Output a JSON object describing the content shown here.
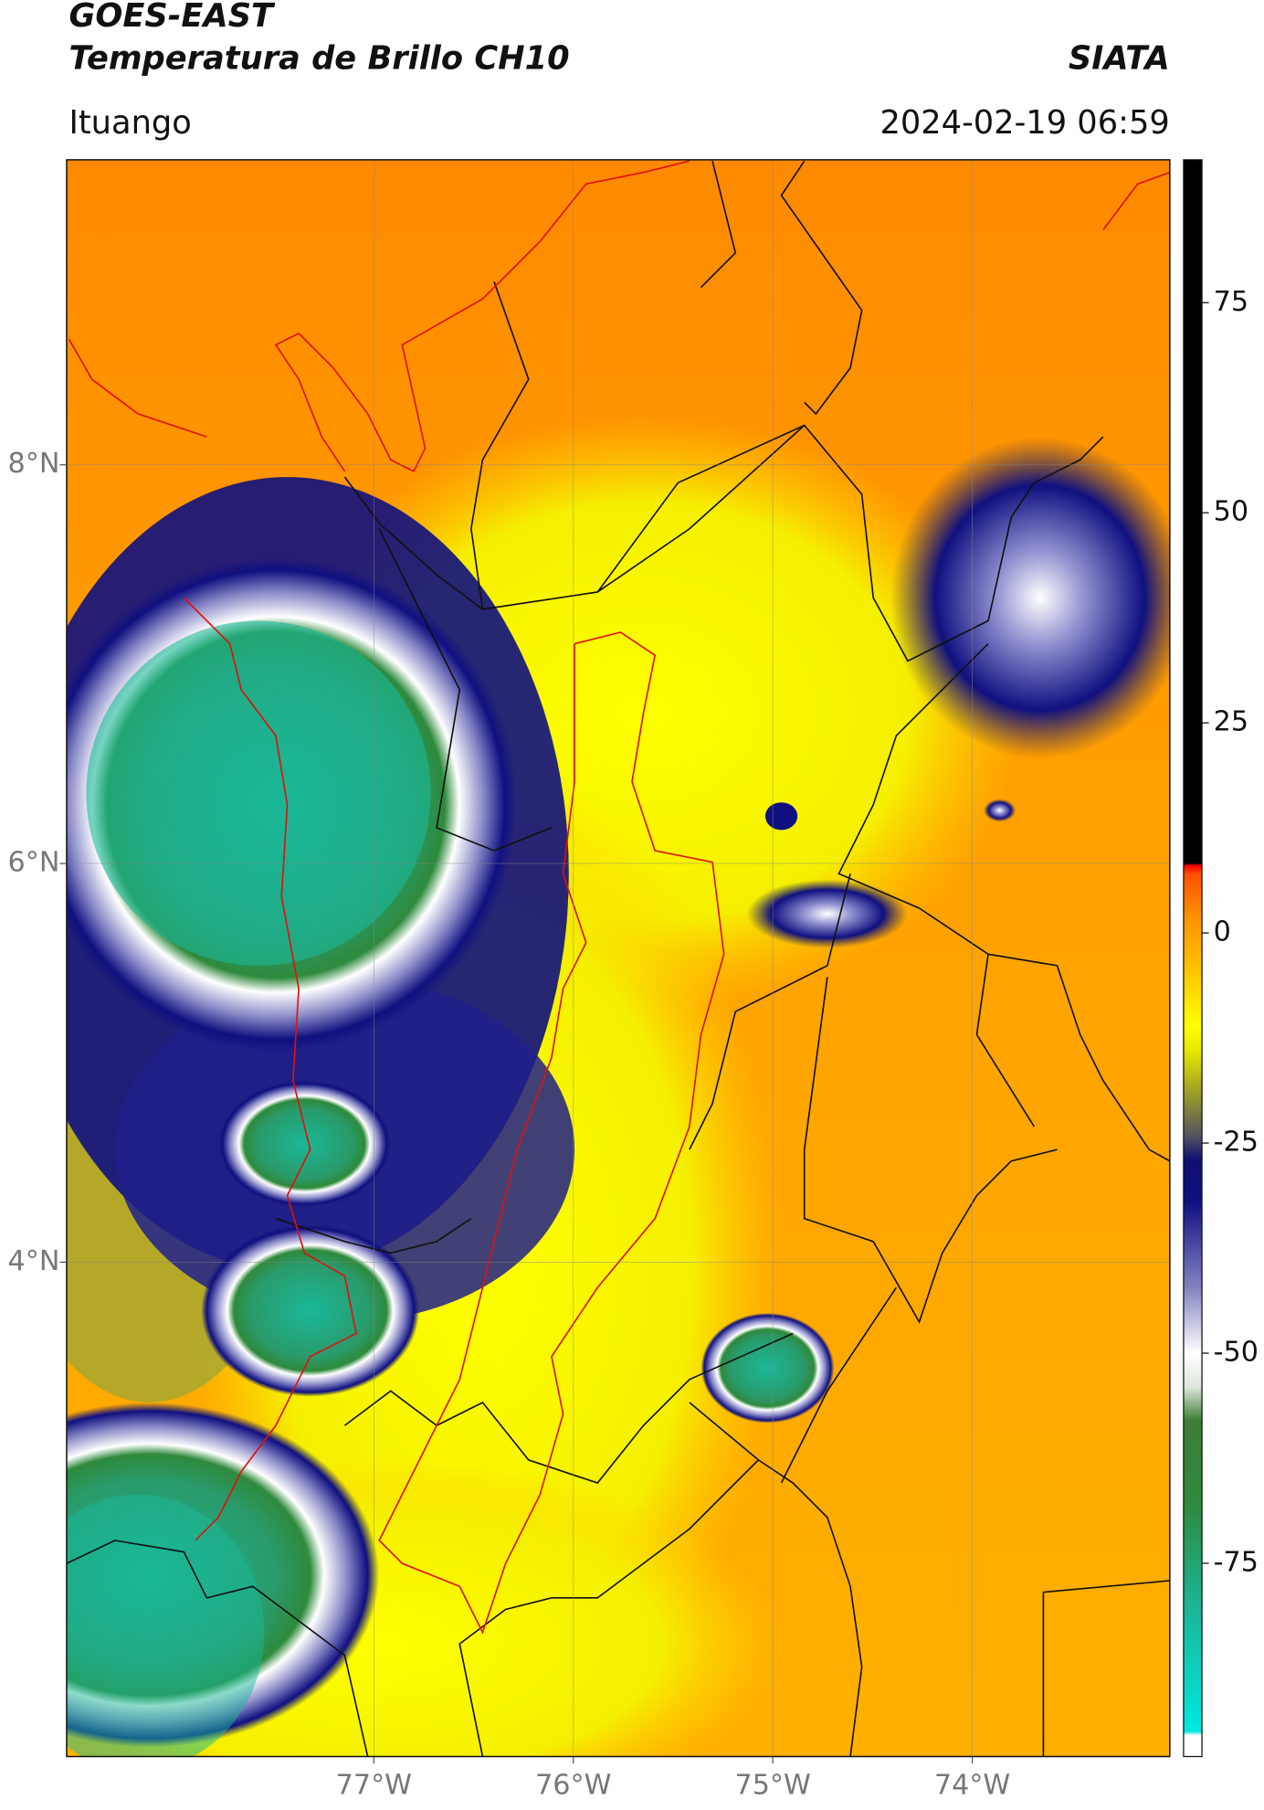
{
  "header": {
    "title": "GOES-EAST",
    "subtitle": "Temperatura de Brillo CH10",
    "source": "SIATA",
    "region": "Ituango",
    "datetime": "2024-02-19 06:59"
  },
  "map": {
    "xlim": [
      -78.54,
      -73.01
    ],
    "ylim": [
      1.52,
      9.53
    ],
    "xticks": [
      {
        "value": -77,
        "label": "77°W"
      },
      {
        "value": -76,
        "label": "76°W"
      },
      {
        "value": -75,
        "label": "75°W"
      },
      {
        "value": -74,
        "label": "74°W"
      }
    ],
    "yticks": [
      {
        "value": 8,
        "label": "8°N"
      },
      {
        "value": 6,
        "label": "6°N"
      },
      {
        "value": 4,
        "label": "4°N"
      }
    ],
    "grid": true
  },
  "colorbar": {
    "clim": [
      -98,
      92
    ],
    "ticks": [
      75,
      50,
      25,
      0,
      -25,
      -50,
      -75
    ],
    "colors": [
      [
        -98,
        "#ffffff"
      ],
      [
        -95.5,
        "#ffffff"
      ],
      [
        -95,
        "#00e8e0"
      ],
      [
        -80,
        "#1bb595"
      ],
      [
        -68,
        "#2e8a3c"
      ],
      [
        -58,
        "#3e7e36"
      ],
      [
        -54,
        "#dfe8dc"
      ],
      [
        -50,
        "#ffffff"
      ],
      [
        -42,
        "#8080c0"
      ],
      [
        -32,
        "#101080"
      ],
      [
        -27,
        "#101070"
      ],
      [
        -24,
        "#555560"
      ],
      [
        -20,
        "#8f8f30"
      ],
      [
        -14,
        "#e8e800"
      ],
      [
        -11,
        "#ffff00"
      ],
      [
        -4,
        "#ffc000"
      ],
      [
        2,
        "#ff9000"
      ],
      [
        7,
        "#ff5000"
      ],
      [
        8,
        "#ff0000"
      ],
      [
        8.3,
        "#000000"
      ],
      [
        92,
        "#000000"
      ]
    ]
  }
}
